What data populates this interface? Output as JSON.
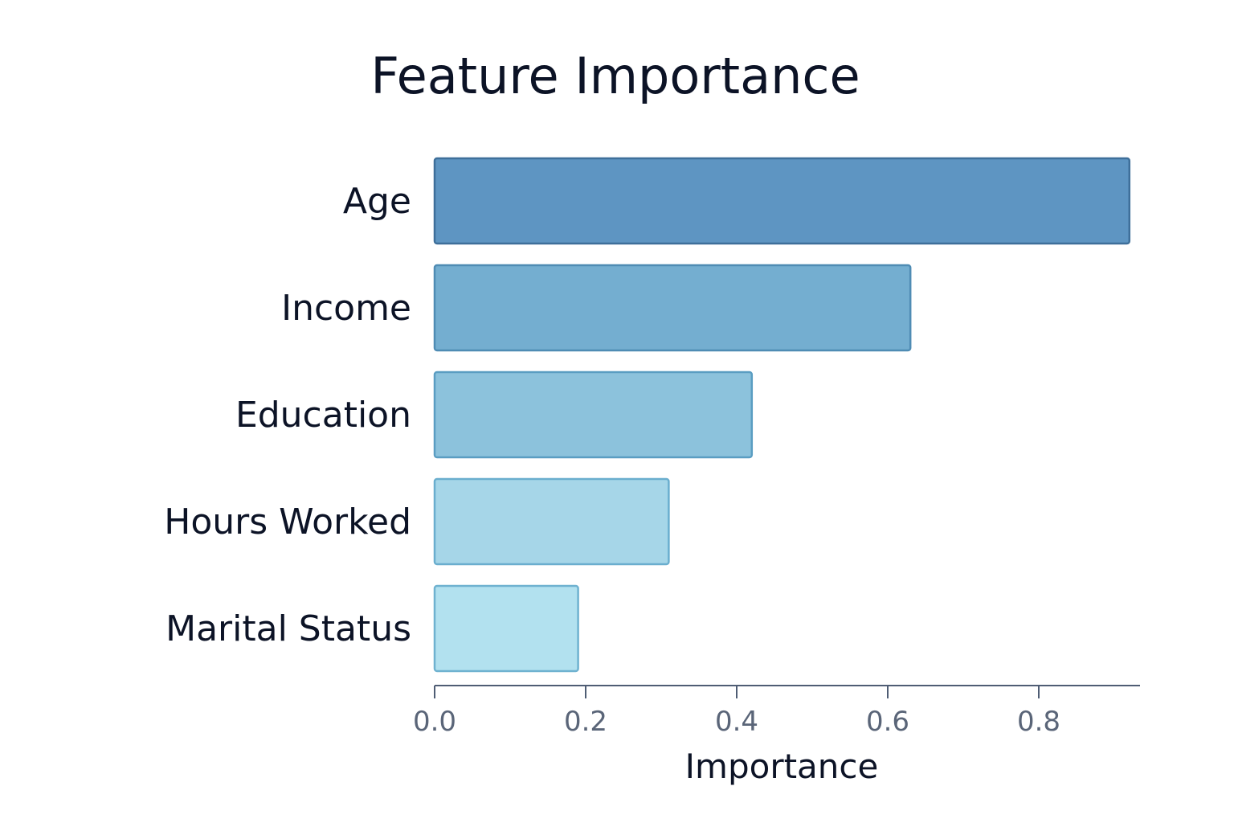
{
  "chart_data": {
    "type": "bar",
    "orientation": "horizontal",
    "title": "Feature Importance",
    "xlabel": "Importance",
    "ylabel": "",
    "categories": [
      "Age",
      "Income",
      "Education",
      "Hours Worked",
      "Marital Status"
    ],
    "values": [
      0.92,
      0.63,
      0.42,
      0.31,
      0.19
    ],
    "xlim": [
      0,
      0.93
    ],
    "xticks": [
      "0.0",
      "0.2",
      "0.4",
      "0.6",
      "0.8"
    ],
    "grid": false,
    "legend": "none",
    "colors": {
      "fills": [
        "#5e95c2",
        "#74aed0",
        "#8cc2dc",
        "#a6d6e8",
        "#b2e1ef"
      ],
      "strokes": [
        "#3e6f9a",
        "#4f8cb4",
        "#5a9dc2",
        "#6aaece",
        "#6fb2d0"
      ]
    }
  }
}
